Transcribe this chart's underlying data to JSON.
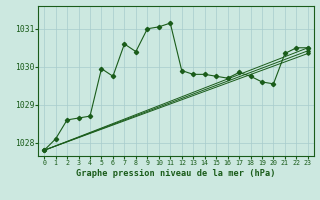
{
  "title": "Graphe pression niveau de la mer (hPa)",
  "background_color": "#cce8e0",
  "line_color": "#1a5c1a",
  "grid_color": "#a8cccc",
  "xlim": [
    -0.5,
    23.5
  ],
  "ylim": [
    1027.65,
    1031.6
  ],
  "yticks": [
    1028,
    1029,
    1030,
    1031
  ],
  "xtick_labels": [
    "0",
    "1",
    "2",
    "3",
    "4",
    "5",
    "6",
    "7",
    "8",
    "9",
    "10",
    "11",
    "12",
    "13",
    "14",
    "15",
    "16",
    "17",
    "18",
    "19",
    "20",
    "21",
    "22",
    "23"
  ],
  "xticks": [
    0,
    1,
    2,
    3,
    4,
    5,
    6,
    7,
    8,
    9,
    10,
    11,
    12,
    13,
    14,
    15,
    16,
    17,
    18,
    19,
    20,
    21,
    22,
    23
  ],
  "series_main": [
    1027.8,
    1028.1,
    1028.6,
    1028.65,
    1028.7,
    1029.95,
    1029.75,
    1030.6,
    1030.4,
    1031.0,
    1031.05,
    1031.15,
    1029.9,
    1029.8,
    1029.8,
    1029.75,
    1029.7,
    1029.85,
    1029.75,
    1029.6,
    1029.55,
    1030.35,
    1030.5,
    1030.5
  ],
  "series_linear": [
    [
      [
        0,
        1027.8
      ],
      [
        23,
        1030.5
      ]
    ],
    [
      [
        0,
        1027.8
      ],
      [
        23,
        1030.42
      ]
    ],
    [
      [
        0,
        1027.8
      ],
      [
        23,
        1030.35
      ]
    ]
  ]
}
